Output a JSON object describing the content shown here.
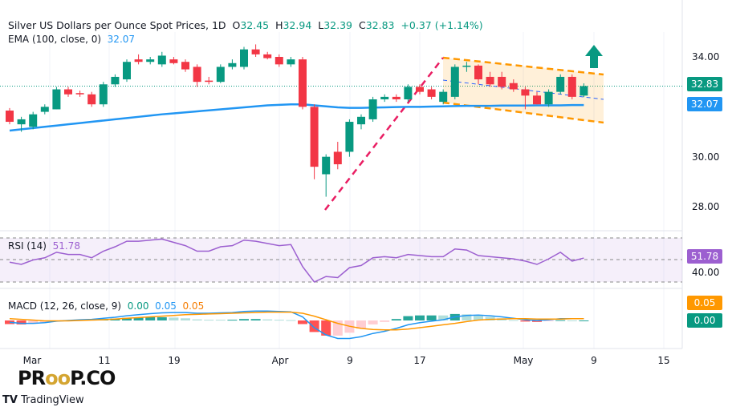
{
  "header": {
    "title": "Silver US Dollars per Ounce Spot Prices, 1D",
    "o_label": "O",
    "open": "32.45",
    "h_label": "H",
    "high": "32.94",
    "l_label": "L",
    "low": "32.39",
    "c_label": "C",
    "close": "32.83",
    "change": "+0.37 (+1.14%)",
    "ema_label": "EMA (100, close, 0)",
    "ema_value": "32.07",
    "rsi_label": "RSI (14)",
    "rsi_value": "51.78",
    "macd_label": "MACD (12, 26, close, 9)",
    "macd_hist": "0.00",
    "macd_line": "0.05",
    "macd_signal": "0.05"
  },
  "price_axis": {
    "ticks": [
      "34.00",
      "30.00",
      "28.00"
    ],
    "last_price": "32.83",
    "ema_price": "32.07",
    "rsi_tick": "40.00",
    "rsi_tag": "51.78",
    "macd_tag1": "0.05",
    "macd_tag2": "0.00"
  },
  "time_axis": [
    "Mar",
    "11",
    "19",
    "Apr",
    "9",
    "17",
    "May",
    "9",
    "15"
  ],
  "watermark": "PROOP.CO",
  "brand": "TradingView",
  "colors": {
    "up": "#089981",
    "down": "#f23645",
    "ema": "#2196f3",
    "rsi": "#9c5fd0",
    "macd": "#2196f3",
    "signal": "#ff9800",
    "channel": "#ff9800",
    "trend": "#e91e63",
    "arrow": "#089981"
  },
  "chart_data": {
    "type": "candlestick",
    "ylim": [
      27.5,
      35.5
    ],
    "candles": [
      [
        31.85,
        31.95,
        31.3,
        31.4
      ],
      [
        31.3,
        31.6,
        31.0,
        31.5
      ],
      [
        31.2,
        31.8,
        31.1,
        31.7
      ],
      [
        31.8,
        32.1,
        31.7,
        32.0
      ],
      [
        31.9,
        32.8,
        31.9,
        32.7
      ],
      [
        32.7,
        32.8,
        32.4,
        32.5
      ],
      [
        32.55,
        32.65,
        32.4,
        32.5
      ],
      [
        32.5,
        32.6,
        32.0,
        32.1
      ],
      [
        32.1,
        33.0,
        32.0,
        32.9
      ],
      [
        32.9,
        33.3,
        32.8,
        33.2
      ],
      [
        33.1,
        33.9,
        33.0,
        33.8
      ],
      [
        33.9,
        34.1,
        33.7,
        33.8
      ],
      [
        33.8,
        34.0,
        33.7,
        33.9
      ],
      [
        33.7,
        34.2,
        33.6,
        34.05
      ],
      [
        33.9,
        34.0,
        33.7,
        33.75
      ],
      [
        33.8,
        33.9,
        33.4,
        33.5
      ],
      [
        33.6,
        33.7,
        32.8,
        33.0
      ],
      [
        33.05,
        33.2,
        32.9,
        33.0
      ],
      [
        33.0,
        33.7,
        32.95,
        33.6
      ],
      [
        33.6,
        33.9,
        33.5,
        33.75
      ],
      [
        33.6,
        34.4,
        33.5,
        34.3
      ],
      [
        34.3,
        34.5,
        34.0,
        34.1
      ],
      [
        34.1,
        34.2,
        33.9,
        33.95
      ],
      [
        34.0,
        34.1,
        33.6,
        33.7
      ],
      [
        33.7,
        34.0,
        33.6,
        33.9
      ],
      [
        33.9,
        34.0,
        31.9,
        32.0
      ],
      [
        32.0,
        32.1,
        29.1,
        29.6
      ],
      [
        29.3,
        30.1,
        28.4,
        30.0
      ],
      [
        30.2,
        30.6,
        29.5,
        29.7
      ],
      [
        30.2,
        31.5,
        30.0,
        31.4
      ],
      [
        31.3,
        31.7,
        31.1,
        31.6
      ],
      [
        31.5,
        32.4,
        31.4,
        32.3
      ],
      [
        32.3,
        32.5,
        32.2,
        32.4
      ],
      [
        32.4,
        32.5,
        32.2,
        32.3
      ],
      [
        32.3,
        32.9,
        32.2,
        32.8
      ],
      [
        32.8,
        32.9,
        32.5,
        32.6
      ],
      [
        32.7,
        32.8,
        32.3,
        32.4
      ],
      [
        32.2,
        32.7,
        32.1,
        32.6
      ],
      [
        32.4,
        33.7,
        32.3,
        33.6
      ],
      [
        33.6,
        33.8,
        33.4,
        33.65
      ],
      [
        33.65,
        33.7,
        32.9,
        33.1
      ],
      [
        33.2,
        33.4,
        32.8,
        32.9
      ],
      [
        33.2,
        33.4,
        32.7,
        32.8
      ],
      [
        32.95,
        33.1,
        32.6,
        32.7
      ],
      [
        32.7,
        32.8,
        31.9,
        32.45
      ],
      [
        32.45,
        32.6,
        32.1,
        32.1
      ],
      [
        32.1,
        32.7,
        32.0,
        32.6
      ],
      [
        32.6,
        33.3,
        32.5,
        33.2
      ],
      [
        33.2,
        33.3,
        32.3,
        32.4
      ],
      [
        32.45,
        32.94,
        32.39,
        32.83
      ]
    ],
    "ema": [
      31.05,
      31.1,
      31.15,
      31.2,
      31.25,
      31.3,
      31.35,
      31.4,
      31.45,
      31.5,
      31.55,
      31.6,
      31.65,
      31.7,
      31.74,
      31.78,
      31.82,
      31.86,
      31.9,
      31.94,
      31.98,
      32.02,
      32.06,
      32.08,
      32.1,
      32.1,
      32.06,
      32.02,
      31.98,
      31.96,
      31.96,
      31.97,
      31.98,
      31.99,
      32.0,
      32.0,
      32.01,
      32.02,
      32.03,
      32.04,
      32.04,
      32.04,
      32.05,
      32.05,
      32.05,
      32.06,
      32.06,
      32.06,
      32.07,
      32.07
    ],
    "rsi": [
      48,
      46,
      50,
      52,
      57,
      55,
      55,
      52,
      58,
      62,
      67,
      67,
      68,
      69,
      66,
      63,
      58,
      58,
      62,
      63,
      68,
      67,
      65,
      63,
      64,
      44,
      30,
      35,
      34,
      43,
      45,
      52,
      53,
      52,
      55,
      54,
      53,
      53,
      60,
      59,
      54,
      53,
      52,
      51,
      49,
      46,
      51,
      57,
      49,
      51.78
    ],
    "macd": [
      -0.05,
      -0.08,
      -0.08,
      -0.06,
      -0.02,
      0.0,
      0.02,
      0.03,
      0.06,
      0.09,
      0.13,
      0.16,
      0.19,
      0.21,
      0.22,
      0.22,
      0.2,
      0.2,
      0.21,
      0.22,
      0.25,
      0.26,
      0.26,
      0.25,
      0.24,
      0.1,
      -0.2,
      -0.4,
      -0.5,
      -0.5,
      -0.45,
      -0.36,
      -0.3,
      -0.22,
      -0.12,
      -0.06,
      -0.02,
      0.02,
      0.1,
      0.14,
      0.15,
      0.13,
      0.1,
      0.06,
      0.02,
      0.0,
      0.02,
      0.05,
      0.05,
      0.05
    ],
    "signal": [
      0.05,
      0.03,
      0.01,
      -0.01,
      -0.01,
      -0.01,
      0.0,
      0.01,
      0.02,
      0.04,
      0.06,
      0.08,
      0.1,
      0.12,
      0.14,
      0.16,
      0.17,
      0.18,
      0.19,
      0.2,
      0.21,
      0.22,
      0.23,
      0.23,
      0.23,
      0.2,
      0.12,
      0.02,
      -0.08,
      -0.16,
      -0.22,
      -0.25,
      -0.26,
      -0.26,
      -0.24,
      -0.2,
      -0.16,
      -0.12,
      -0.08,
      -0.03,
      0.01,
      0.03,
      0.04,
      0.05,
      0.05,
      0.04,
      0.04,
      0.04,
      0.05,
      0.05
    ]
  }
}
